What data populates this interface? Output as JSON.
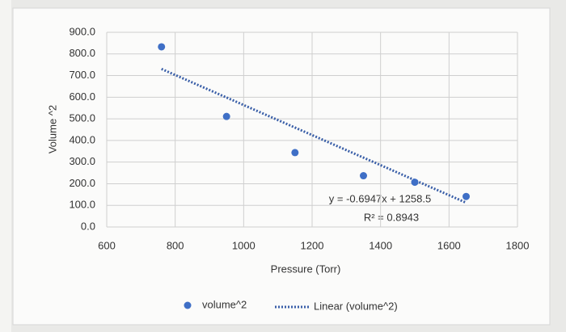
{
  "chart_data": {
    "type": "scatter",
    "x_label": "Pressure (Torr)",
    "y_label": "Volume ^2",
    "series": [
      {
        "name": "volume^2",
        "color": "#3f6fc6",
        "x": [
          760,
          950,
          1150,
          1350,
          1500,
          1650
        ],
        "values": [
          833,
          511,
          344,
          237,
          207,
          141
        ]
      }
    ],
    "trendline": {
      "name": "Linear (volume^2)",
      "color": "#3a5fa8",
      "slope": -0.6947,
      "intercept": 1258.5,
      "equation": "y = -0.6947x + 1258.5",
      "r_squared_label": "R² = 0.8943"
    },
    "xlim": [
      600,
      1800
    ],
    "xticks": [
      600,
      800,
      1000,
      1200,
      1400,
      1600,
      1800
    ],
    "ylim": [
      0,
      900
    ],
    "yticks": [
      {
        "value": 0,
        "label": "0.0"
      },
      {
        "value": 100,
        "label": "100.0"
      },
      {
        "value": 200,
        "label": "200.0"
      },
      {
        "value": 300,
        "label": "300.0"
      },
      {
        "value": 400,
        "label": "400.0"
      },
      {
        "value": 500,
        "label": "500.0"
      },
      {
        "value": 600,
        "label": "600.0"
      },
      {
        "value": 700,
        "label": "700.0"
      },
      {
        "value": 800,
        "label": "800.0"
      },
      {
        "value": 900,
        "label": "900.0"
      }
    ],
    "grid": true
  }
}
